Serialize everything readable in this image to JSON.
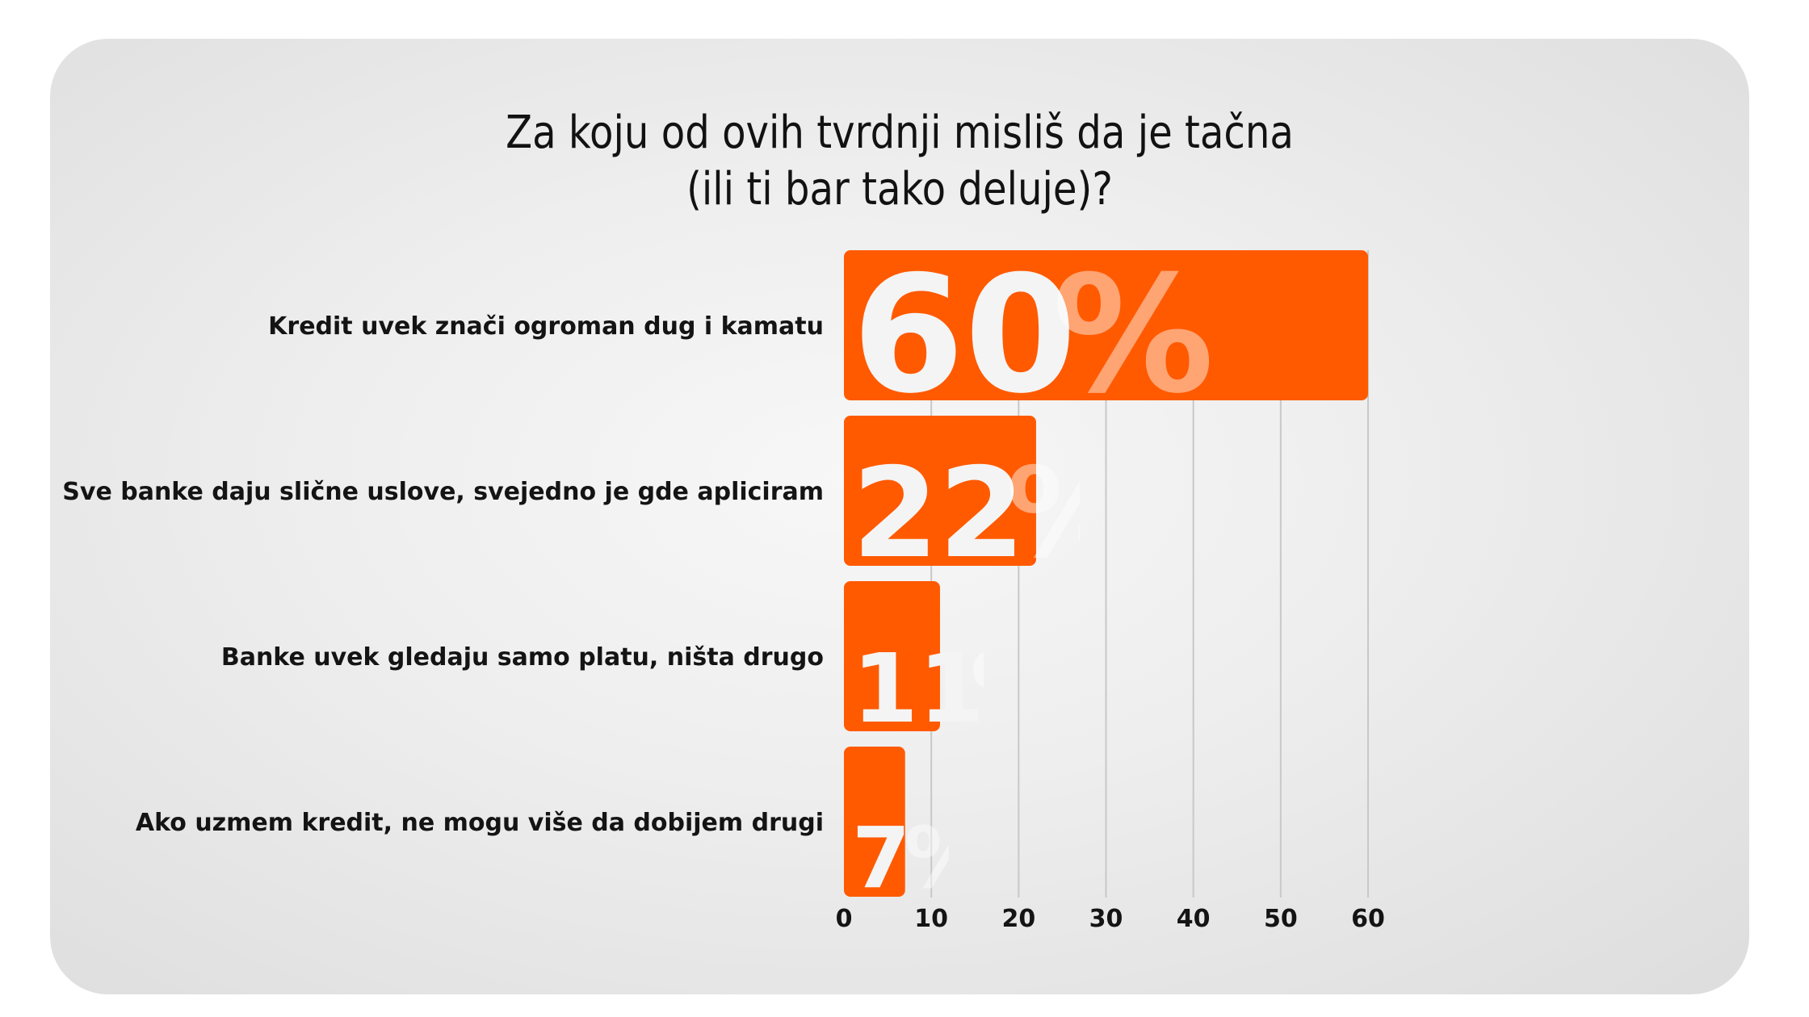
{
  "colors": {
    "bar": "#ff5a00",
    "grid": "#c8c8c8",
    "text": "#141414",
    "value_label": "#f4f4f4"
  },
  "chart_data": {
    "type": "bar",
    "orientation": "horizontal",
    "title": "Za koju od ovih tvrdnji misliš da je tačna\n(ili ti bar tako deluje)?",
    "title_lines": [
      "Za koju od ovih tvrdnji misliš da je tačna",
      "(ili ti bar tako deluje)?"
    ],
    "categories": [
      "Kredit uvek znači ogroman dug i kamatu",
      "Sve banke daju slične uslove, svejedno je gde apliciram",
      "Banke uvek gledaju samo platu, ništa drugo",
      "Ako uzmem kredit, ne mogu više da dobijem drugi"
    ],
    "values": [
      60,
      22,
      11,
      7
    ],
    "value_labels": [
      "60",
      "22",
      "11",
      "7"
    ],
    "value_suffix": "%",
    "xlim": [
      0,
      60
    ],
    "xticks": [
      "0",
      "10",
      "20",
      "30",
      "40",
      "50",
      "60"
    ],
    "grid": true,
    "legend": "none"
  }
}
